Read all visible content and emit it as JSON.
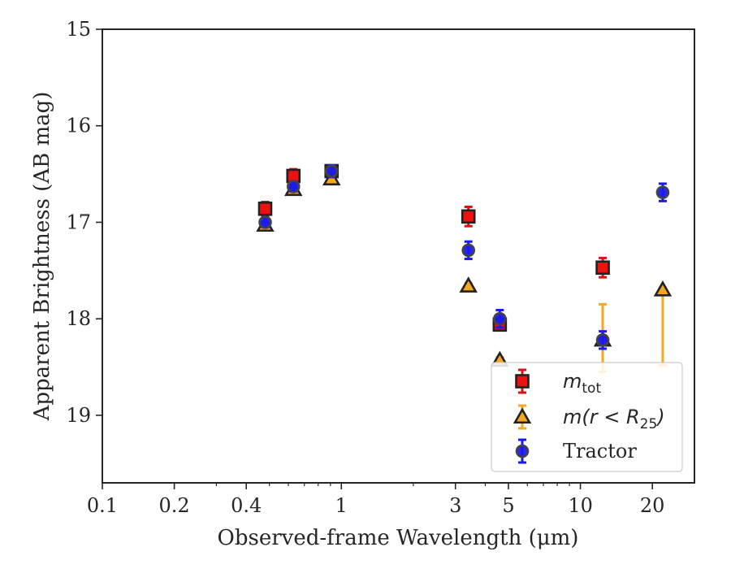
{
  "chart_data": {
    "type": "scatter",
    "xlabel": "Observed-frame Wavelength (μm)",
    "ylabel": "Apparent Brightness (AB mag)",
    "xscale": "log",
    "xlim": [
      0.1,
      30
    ],
    "ylim": [
      19.7,
      15
    ],
    "y_inverted": true,
    "x_ticks": [
      {
        "value": 0.1,
        "label": "0.1"
      },
      {
        "value": 0.2,
        "label": "0.2"
      },
      {
        "value": 0.4,
        "label": "0.4"
      },
      {
        "value": 1,
        "label": "1"
      },
      {
        "value": 3,
        "label": "3"
      },
      {
        "value": 5,
        "label": "5"
      },
      {
        "value": 10,
        "label": "10"
      },
      {
        "value": 20,
        "label": "20"
      }
    ],
    "y_ticks": [
      {
        "value": 15,
        "label": "15"
      },
      {
        "value": 16,
        "label": "16"
      },
      {
        "value": 17,
        "label": "17"
      },
      {
        "value": 18,
        "label": "18"
      },
      {
        "value": 19,
        "label": "19"
      }
    ],
    "grid": false,
    "legend_position": "bottom-right",
    "series": [
      {
        "name": "m_tot",
        "marker": "square",
        "color": "#ee1111",
        "edge_color": "#222222",
        "points": [
          {
            "x": 0.48,
            "y": 16.86,
            "err": 0.07
          },
          {
            "x": 0.63,
            "y": 16.52,
            "err": 0.07
          },
          {
            "x": 0.91,
            "y": 16.47,
            "err": 0.06
          },
          {
            "x": 3.4,
            "y": 16.94,
            "err": 0.1
          },
          {
            "x": 4.6,
            "y": 18.06,
            "err": 0.06
          },
          {
            "x": 12.4,
            "y": 17.47,
            "err": 0.1
          }
        ]
      },
      {
        "name": "m(r<R25)",
        "marker": "triangle",
        "color": "#f6a623",
        "edge_color": "#222222",
        "points": [
          {
            "x": 0.48,
            "y": 17.03,
            "err": 0.03
          },
          {
            "x": 0.63,
            "y": 16.66,
            "err": 0.03
          },
          {
            "x": 0.91,
            "y": 16.55,
            "err": 0.03
          },
          {
            "x": 3.4,
            "y": 17.66,
            "err": 0.03
          },
          {
            "x": 4.6,
            "y": 18.43,
            "err": 0.03
          },
          {
            "x": 12.4,
            "y": 18.22,
            "err_low": 0.37,
            "err_high": 0.33
          },
          {
            "x": 22.1,
            "y": 17.7,
            "err_low": 0.02,
            "err_high": 0.78
          }
        ]
      },
      {
        "name": "Tractor",
        "marker": "circle",
        "color": "#1a1aee",
        "edge_color": "#444444",
        "points": [
          {
            "x": 0.48,
            "y": 17.0,
            "err": 0.05
          },
          {
            "x": 0.63,
            "y": 16.63,
            "err": 0.05
          },
          {
            "x": 0.91,
            "y": 16.47,
            "err": 0.06
          },
          {
            "x": 3.4,
            "y": 17.29,
            "err": 0.09
          },
          {
            "x": 4.6,
            "y": 18.0,
            "err": 0.09
          },
          {
            "x": 12.4,
            "y": 18.22,
            "err": 0.09
          },
          {
            "x": 22.1,
            "y": 16.69,
            "err": 0.09
          }
        ]
      }
    ],
    "legend": [
      {
        "series": 0,
        "label_base": "m",
        "label_sub": "tot"
      },
      {
        "series": 1,
        "label_pre": "m(r < R",
        "label_sub": "25",
        "label_post": ")"
      },
      {
        "series": 2,
        "label": "Tractor"
      }
    ]
  }
}
